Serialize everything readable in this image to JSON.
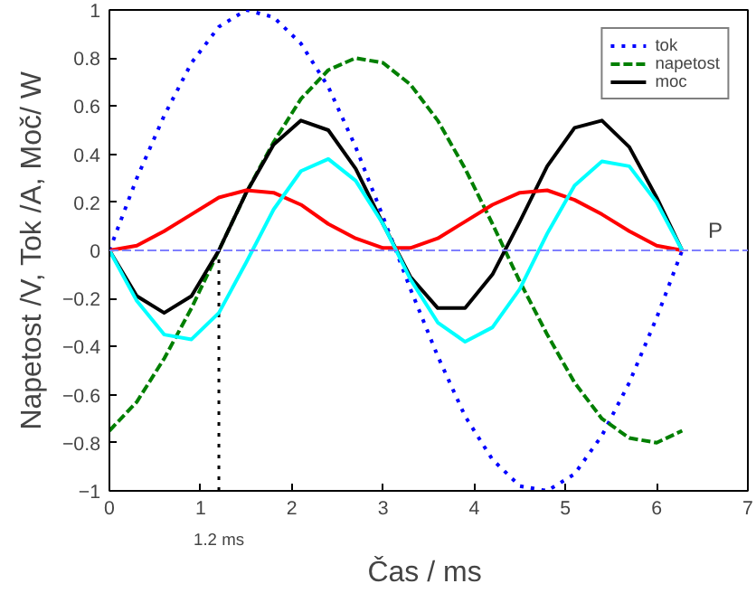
{
  "chart_data": {
    "type": "line",
    "xlabel": "Čas  / ms",
    "ylabel": "Napetost /V, Tok /A, Moč/ W",
    "x": [
      0,
      0.3,
      0.6,
      0.9,
      1.2,
      1.5,
      1.8,
      2.1,
      2.4,
      2.7,
      3.0,
      3.3,
      3.6,
      3.9,
      4.2,
      4.5,
      4.8,
      5.1,
      5.4,
      5.7,
      6.0,
      6.28
    ],
    "series": [
      {
        "name": "tok",
        "color": "#0000ff",
        "line_style": "dotted",
        "values": [
          0,
          0.3,
          0.56,
          0.78,
          0.93,
          1.0,
          0.97,
          0.86,
          0.68,
          0.43,
          0.14,
          -0.16,
          -0.44,
          -0.69,
          -0.87,
          -0.98,
          -1.0,
          -0.93,
          -0.77,
          -0.55,
          -0.28,
          0
        ]
      },
      {
        "name": "napetost",
        "color": "#007f00",
        "line_style": "dashed",
        "values": [
          -0.75,
          -0.63,
          -0.45,
          -0.24,
          0,
          0.24,
          0.45,
          0.63,
          0.75,
          0.8,
          0.78,
          0.69,
          0.54,
          0.34,
          0.11,
          -0.13,
          -0.35,
          -0.55,
          -0.7,
          -0.78,
          -0.8,
          -0.75
        ]
      },
      {
        "name": "moc",
        "color": "#000000",
        "line_style": "solid",
        "values": [
          0,
          -0.19,
          -0.26,
          -0.19,
          0,
          0.24,
          0.44,
          0.54,
          0.5,
          0.34,
          0.11,
          -0.11,
          -0.24,
          -0.24,
          -0.1,
          0.12,
          0.35,
          0.51,
          0.54,
          0.43,
          0.22,
          0
        ]
      },
      {
        "color": "#ff0000",
        "line_style": "solid",
        "values": [
          0,
          0.02,
          0.08,
          0.15,
          0.22,
          0.25,
          0.24,
          0.19,
          0.11,
          0.05,
          0.01,
          0.01,
          0.05,
          0.12,
          0.19,
          0.24,
          0.25,
          0.21,
          0.15,
          0.08,
          0.02,
          0
        ]
      },
      {
        "color": "#00ffff",
        "line_style": "solid",
        "values": [
          0,
          -0.21,
          -0.35,
          -0.37,
          -0.26,
          -0.05,
          0.17,
          0.33,
          0.38,
          0.29,
          0.11,
          -0.12,
          -0.3,
          -0.38,
          -0.32,
          -0.16,
          0.07,
          0.27,
          0.37,
          0.35,
          0.2,
          0
        ]
      }
    ],
    "xlim": [
      0,
      7
    ],
    "ylim": [
      -1,
      1
    ],
    "xticks": [
      0,
      1,
      2,
      3,
      4,
      5,
      6,
      7
    ],
    "yticks": [
      -1,
      -0.8,
      -0.6,
      -0.4,
      -0.2,
      0,
      0.2,
      0.4,
      0.6,
      0.8,
      1
    ],
    "ref_lines": [
      {
        "axis": "y",
        "value": 0,
        "color": "#8080ff",
        "line_style": "dashed"
      },
      {
        "axis": "x",
        "value": 1.2,
        "label": "1.2 ms",
        "color": "#000000",
        "line_style": "dotted"
      }
    ],
    "annotations": [
      "P"
    ],
    "legend": "top right",
    "grid": false
  }
}
